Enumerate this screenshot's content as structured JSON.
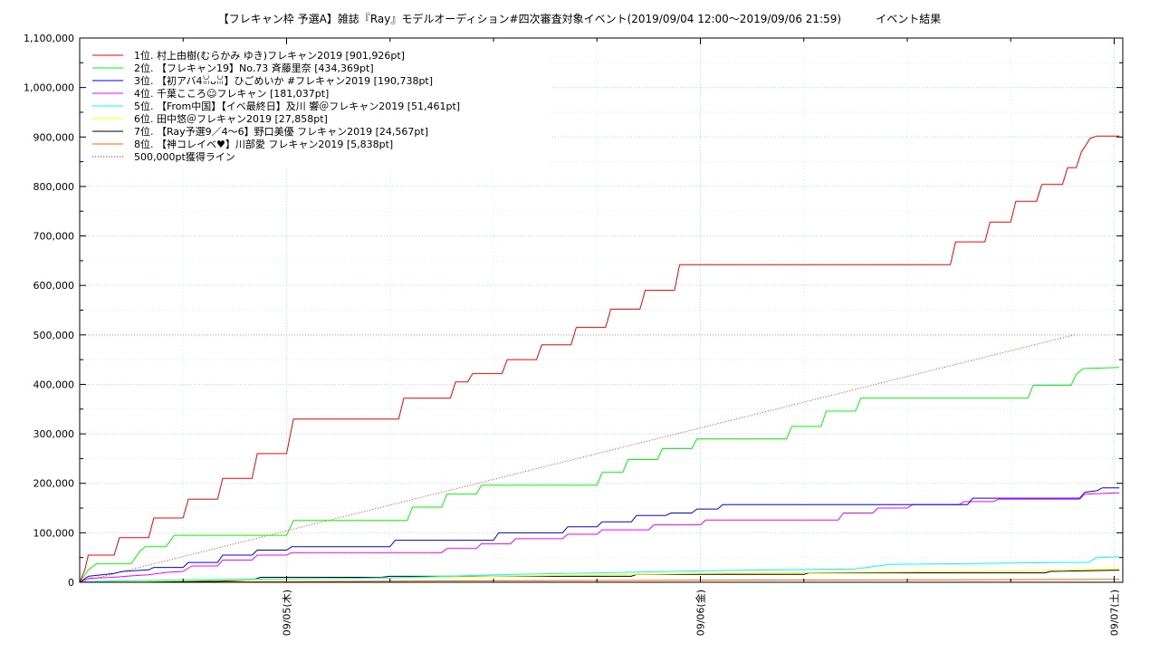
{
  "chart_data": {
    "type": "line",
    "title": "【フレキャン枠 予選A】雑誌『Ray』モデルオーディション#四次審査対象イベント(2019/09/04 12:00〜2019/09/06 21:59)          イベント結果",
    "xlabel": "",
    "ylabel": "",
    "x_unit": "hours since 2019/09/04 12:00",
    "xlim": [
      0,
      60.5
    ],
    "ylim": [
      0,
      1100000
    ],
    "grid": true,
    "legend_position": "top-left",
    "yticks": [
      {
        "value": 0,
        "label": "0"
      },
      {
        "value": 100000,
        "label": "100,000"
      },
      {
        "value": 200000,
        "label": "200,000"
      },
      {
        "value": 300000,
        "label": "300,000"
      },
      {
        "value": 400000,
        "label": "400,000"
      },
      {
        "value": 500000,
        "label": "500,000"
      },
      {
        "value": 600000,
        "label": "600,000"
      },
      {
        "value": 700000,
        "label": "700,000"
      },
      {
        "value": 800000,
        "label": "800,000"
      },
      {
        "value": 900000,
        "label": "900,000"
      },
      {
        "value": 1000000,
        "label": "1,000,000"
      },
      {
        "value": 1100000,
        "label": "1,100,000"
      }
    ],
    "xticks": [
      {
        "value": 12,
        "label": "09/05(木)"
      },
      {
        "value": 36,
        "label": "09/06(金)"
      },
      {
        "value": 60,
        "label": "09/07(土)"
      }
    ],
    "series": [
      {
        "name": "1位. 村上由樹(むらかみ ゆき)フレキャン2019 [901,926pt]",
        "color": "#ff0000",
        "points": [
          [
            0,
            0
          ],
          [
            0.3,
            25000
          ],
          [
            0.5,
            55000
          ],
          [
            2,
            55000
          ],
          [
            2.3,
            90000
          ],
          [
            4,
            90000
          ],
          [
            4.3,
            130000
          ],
          [
            6,
            130000
          ],
          [
            6.3,
            168000
          ],
          [
            8,
            168000
          ],
          [
            8.3,
            210000
          ],
          [
            10,
            210000
          ],
          [
            10.3,
            260000
          ],
          [
            12,
            260000
          ],
          [
            12.4,
            330000
          ],
          [
            18.5,
            330000
          ],
          [
            18.8,
            372000
          ],
          [
            21.5,
            372000
          ],
          [
            21.8,
            405000
          ],
          [
            22.5,
            405000
          ],
          [
            22.8,
            422000
          ],
          [
            24.5,
            422000
          ],
          [
            24.8,
            450000
          ],
          [
            26.5,
            450000
          ],
          [
            26.8,
            480000
          ],
          [
            28.5,
            480000
          ],
          [
            28.8,
            515000
          ],
          [
            30.5,
            515000
          ],
          [
            30.8,
            552000
          ],
          [
            32.5,
            552000
          ],
          [
            32.8,
            590000
          ],
          [
            34.5,
            590000
          ],
          [
            34.8,
            642000
          ],
          [
            50.5,
            642000
          ],
          [
            50.8,
            688000
          ],
          [
            52.5,
            688000
          ],
          [
            52.8,
            728000
          ],
          [
            54,
            728000
          ],
          [
            54.3,
            770000
          ],
          [
            55.5,
            770000
          ],
          [
            55.8,
            804000
          ],
          [
            57,
            804000
          ],
          [
            57.3,
            838000
          ],
          [
            57.8,
            838000
          ],
          [
            58.1,
            870000
          ],
          [
            58.3,
            880000
          ],
          [
            58.6,
            897000
          ],
          [
            59,
            901926
          ],
          [
            60.3,
            901926
          ]
        ]
      },
      {
        "name": "2位. 【フレキャン19】No.73 斉藤里奈 [434,369pt]",
        "color": "#00ff00",
        "points": [
          [
            0,
            0
          ],
          [
            0.5,
            25000
          ],
          [
            1,
            38000
          ],
          [
            3,
            38000
          ],
          [
            3.5,
            63000
          ],
          [
            3.8,
            72000
          ],
          [
            5,
            72000
          ],
          [
            5.5,
            95000
          ],
          [
            12,
            95000
          ],
          [
            12.4,
            125000
          ],
          [
            19,
            125000
          ],
          [
            19.3,
            152000
          ],
          [
            21,
            152000
          ],
          [
            21.3,
            178000
          ],
          [
            23,
            178000
          ],
          [
            23.3,
            196000
          ],
          [
            30,
            196000
          ],
          [
            30.3,
            222000
          ],
          [
            31.5,
            222000
          ],
          [
            31.8,
            248000
          ],
          [
            33.5,
            248000
          ],
          [
            33.8,
            270000
          ],
          [
            35.5,
            270000
          ],
          [
            35.8,
            290000
          ],
          [
            41,
            290000
          ],
          [
            41.3,
            315000
          ],
          [
            43,
            315000
          ],
          [
            43.3,
            346000
          ],
          [
            45,
            346000
          ],
          [
            45.3,
            372000
          ],
          [
            55,
            372000
          ],
          [
            55.3,
            398000
          ],
          [
            57.5,
            398000
          ],
          [
            57.8,
            420000
          ],
          [
            58.2,
            432000
          ],
          [
            60.3,
            434369
          ]
        ]
      },
      {
        "name": "3位. 【初アバ4ꈍᴗꈍ】ひごめいか #フレキャン2019 [190,738pt]",
        "color": "#0000ff",
        "points": [
          [
            0,
            0
          ],
          [
            0.5,
            12000
          ],
          [
            2,
            18000
          ],
          [
            2.5,
            22000
          ],
          [
            4,
            25000
          ],
          [
            4.3,
            30000
          ],
          [
            6,
            30000
          ],
          [
            6.3,
            40000
          ],
          [
            8,
            40000
          ],
          [
            8.3,
            55000
          ],
          [
            10,
            55000
          ],
          [
            10.3,
            65000
          ],
          [
            12,
            65000
          ],
          [
            12.3,
            72000
          ],
          [
            18,
            72000
          ],
          [
            18.3,
            85000
          ],
          [
            24,
            85000
          ],
          [
            24.3,
            100000
          ],
          [
            28,
            100000
          ],
          [
            28.3,
            112000
          ],
          [
            30,
            112000
          ],
          [
            30.3,
            122000
          ],
          [
            32,
            122000
          ],
          [
            32.3,
            135000
          ],
          [
            34,
            135000
          ],
          [
            34.3,
            140000
          ],
          [
            35.5,
            140000
          ],
          [
            35.8,
            148000
          ],
          [
            37,
            148000
          ],
          [
            37.3,
            157000
          ],
          [
            48,
            157000
          ],
          [
            48.3,
            157000
          ],
          [
            49,
            157000
          ],
          [
            51.5,
            157000
          ],
          [
            51.8,
            170000
          ],
          [
            58,
            170000
          ],
          [
            58.3,
            182000
          ],
          [
            59,
            185000
          ],
          [
            59.3,
            190738
          ],
          [
            60.3,
            190738
          ]
        ]
      },
      {
        "name": "4位. 千葉こころ☺フレキャン [181,037pt]",
        "color": "#ff00ff",
        "points": [
          [
            0,
            0
          ],
          [
            0.5,
            8000
          ],
          [
            2,
            10000
          ],
          [
            3,
            13000
          ],
          [
            4,
            15000
          ],
          [
            5,
            20000
          ],
          [
            6,
            22000
          ],
          [
            6.5,
            33000
          ],
          [
            8,
            33000
          ],
          [
            8.3,
            45000
          ],
          [
            10,
            45000
          ],
          [
            10.3,
            55000
          ],
          [
            12,
            55000
          ],
          [
            12.3,
            60000
          ],
          [
            21,
            60000
          ],
          [
            21.3,
            68000
          ],
          [
            23,
            68000
          ],
          [
            23.3,
            78000
          ],
          [
            25,
            78000
          ],
          [
            25.3,
            88000
          ],
          [
            28,
            88000
          ],
          [
            28.3,
            97000
          ],
          [
            30,
            97000
          ],
          [
            30.3,
            106000
          ],
          [
            33,
            106000
          ],
          [
            33.3,
            116000
          ],
          [
            36,
            116000
          ],
          [
            36.3,
            126000
          ],
          [
            44,
            126000
          ],
          [
            44.3,
            140000
          ],
          [
            46,
            140000
          ],
          [
            46.3,
            150000
          ],
          [
            48,
            150000
          ],
          [
            48.3,
            157000
          ],
          [
            51,
            157000
          ],
          [
            51.3,
            163000
          ],
          [
            53,
            163000
          ],
          [
            53.3,
            168000
          ],
          [
            58,
            168000
          ],
          [
            58.3,
            178000
          ],
          [
            60.3,
            181037
          ]
        ]
      },
      {
        "name": "5位. 【From中国】【イベ最終日】及川 響＠フレキャン2019 [51,461pt]",
        "color": "#00ffff",
        "points": [
          [
            0,
            0
          ],
          [
            1,
            2000
          ],
          [
            6,
            5000
          ],
          [
            12,
            7000
          ],
          [
            18,
            9000
          ],
          [
            24,
            15000
          ],
          [
            36,
            23000
          ],
          [
            45,
            27000
          ],
          [
            47,
            36000
          ],
          [
            57,
            40000
          ],
          [
            58.5,
            40000
          ],
          [
            59,
            50000
          ],
          [
            60.3,
            51461
          ]
        ]
      },
      {
        "name": "6位. 田中悠＠フレキャン2019 [27,858pt]",
        "color": "#ffff00",
        "points": [
          [
            0,
            0
          ],
          [
            6,
            3000
          ],
          [
            12,
            6000
          ],
          [
            20,
            10000
          ],
          [
            28,
            14000
          ],
          [
            36,
            18000
          ],
          [
            44,
            20000
          ],
          [
            52,
            22000
          ],
          [
            57,
            24000
          ],
          [
            60.3,
            27858
          ]
        ]
      },
      {
        "name": "7位. 【Ray予選9／4〜6】野口美優 フレキャン2019 [24,567pt]",
        "color": "#000000",
        "points": [
          [
            0,
            0
          ],
          [
            8,
            2000
          ],
          [
            10,
            5000
          ],
          [
            10.5,
            10000
          ],
          [
            17.5,
            10000
          ],
          [
            18,
            12000
          ],
          [
            32,
            12000
          ],
          [
            32.3,
            16000
          ],
          [
            42,
            16000
          ],
          [
            42.3,
            19000
          ],
          [
            56,
            19000
          ],
          [
            56.3,
            22000
          ],
          [
            60.3,
            24567
          ]
        ]
      },
      {
        "name": "8位. 【神コレイベ♥】川部愛 フレキャン2019 [5,838pt]",
        "color": "#ff6600",
        "points": [
          [
            0,
            0
          ],
          [
            10,
            1000
          ],
          [
            20,
            2500
          ],
          [
            30,
            3500
          ],
          [
            40,
            4500
          ],
          [
            50,
            5200
          ],
          [
            60.3,
            5838
          ]
        ]
      },
      {
        "name": "500,000pt獲得ライン",
        "color": "#ff0000",
        "dotted": true,
        "points": [
          [
            0,
            0
          ],
          [
            57.7,
            500000
          ]
        ]
      }
    ],
    "reference_lines": [
      {
        "y": 500000,
        "color": "#ff8888"
      }
    ]
  }
}
